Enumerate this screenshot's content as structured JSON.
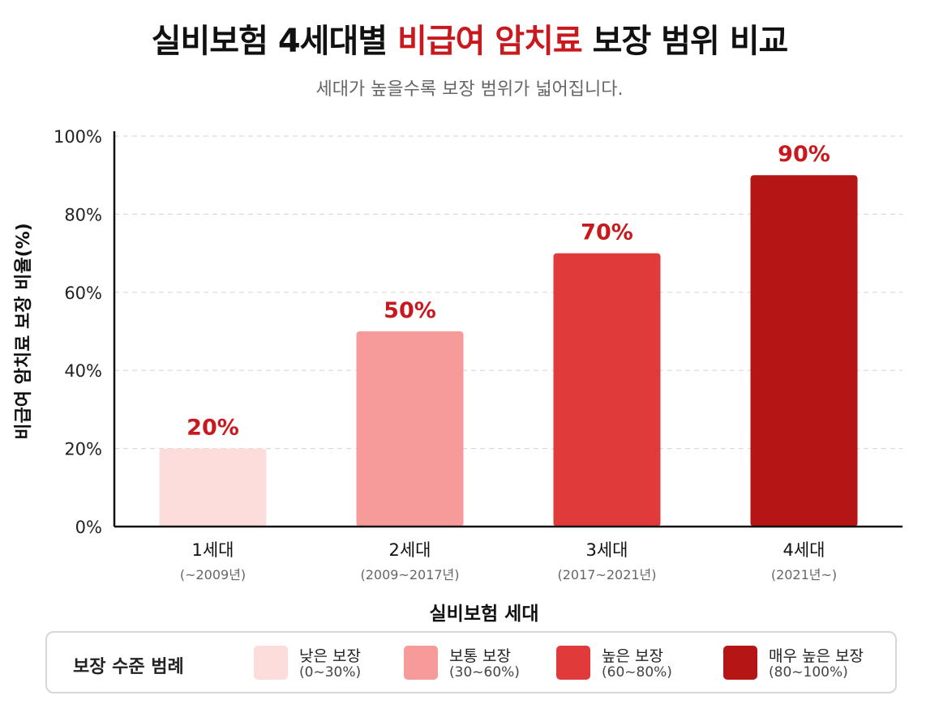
{
  "header": {
    "title_part1": "실비보험 4세대별",
    "title_accent": "비급여 암치료",
    "title_part2": "보장 범위 비교",
    "subtitle": "세대가 높을수록 보장 범위가 넓어집니다."
  },
  "chart_data": {
    "type": "bar",
    "categories": [
      "1세대",
      "2세대",
      "3세대",
      "4세대"
    ],
    "category_sublabels": [
      "(~2009년)",
      "(2009~2017년)",
      "(2017~2021년)",
      "(2021년~)"
    ],
    "values": [
      20,
      50,
      70,
      90
    ],
    "data_labels": [
      "20%",
      "50%",
      "70%",
      "90%"
    ],
    "bar_colors": [
      "#fddcdc",
      "#f79a9a",
      "#e03a3a",
      "#b51515"
    ],
    "label_color": "#c8191e",
    "xlabel": "실비보험 세대",
    "ylabel": "비급여 암치료 보장 비율(%)",
    "ylim": [
      0,
      100
    ],
    "yticks": [
      0,
      20,
      40,
      60,
      80,
      100
    ],
    "ytick_labels": [
      "0%",
      "20%",
      "40%",
      "60%",
      "80%",
      "100%"
    ],
    "grid": "horizontal-dashed",
    "legend_position": "bottom"
  },
  "legend": {
    "title": "보장 수준 범례",
    "items": [
      {
        "label": "낮은 보장",
        "range": "(0~30%)",
        "color": "#fddcdc"
      },
      {
        "label": "보통 보장",
        "range": "(30~60%)",
        "color": "#f79a9a"
      },
      {
        "label": "높은 보장",
        "range": "(60~80%)",
        "color": "#e03a3a"
      },
      {
        "label": "매우 높은 보장",
        "range": "(80~100%)",
        "color": "#b51515"
      }
    ]
  }
}
